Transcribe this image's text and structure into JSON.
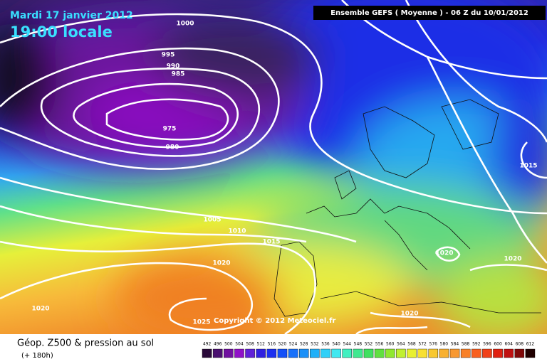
{
  "header": {
    "date": "Mardi 17 janvier 2012",
    "time": "19:00 locale",
    "model": "Ensemble GEFS ( Moyenne )  -  06 Z du 10/01/2012"
  },
  "map": {
    "copyright": "Copyright © 2012 Meteociel.fr",
    "isobar_labels": [
      1000,
      995,
      990,
      985,
      975,
      980,
      1005,
      1010,
      1015,
      1020,
      1025,
      1020,
      1015,
      1020,
      1020,
      1020
    ]
  },
  "legend": {
    "title": "Géop. Z500 & pression au sol",
    "lead": "(+ 180h)",
    "scale": [
      492,
      496,
      500,
      504,
      508,
      512,
      516,
      520,
      524,
      528,
      532,
      536,
      540,
      544,
      548,
      552,
      556,
      560,
      564,
      568,
      572,
      576,
      580,
      584,
      588,
      592,
      596,
      600,
      604,
      608,
      612
    ]
  }
}
